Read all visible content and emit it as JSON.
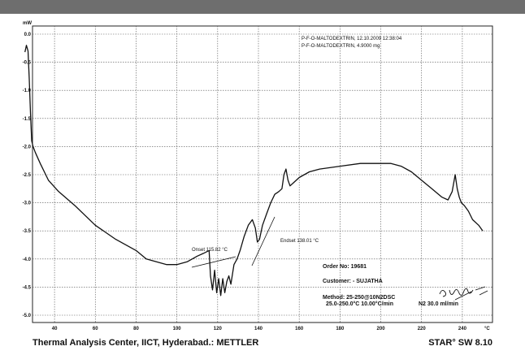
{
  "chart_data": {
    "type": "line",
    "title": "",
    "xlabel": "",
    "ylabel": "",
    "y_unit": "mW",
    "x_unit": "°C",
    "xlim": [
      30,
      250
    ],
    "ylim": [
      -5.0,
      0.0
    ],
    "x_ticks": [
      40,
      60,
      80,
      100,
      120,
      140,
      160,
      180,
      200,
      220,
      240
    ],
    "y_ticks": [
      0.0,
      -0.5,
      -1.0,
      -1.5,
      -2.0,
      -2.5,
      -3.0,
      -3.5,
      -4.0,
      -4.5,
      -5.0
    ],
    "grid": true,
    "series": [
      {
        "color": "#111111",
        "x": [
          25.5,
          26.2,
          27.0,
          27.6,
          28.2,
          28.8,
          29.5,
          30.5,
          33,
          37,
          42,
          50,
          60,
          70,
          80,
          85,
          90,
          95,
          100,
          105,
          110,
          113,
          115.8,
          116.5,
          117.5,
          118.5,
          119.5,
          120.5,
          121.5,
          122.5,
          123.5,
          124.5,
          125.5,
          126.5,
          128,
          129.5,
          131,
          133,
          135,
          137,
          138.5,
          139.5,
          140.5,
          142,
          144,
          146,
          148,
          150,
          151.5,
          152.5,
          153.5,
          154.5,
          155.5,
          157,
          160,
          165,
          170,
          180,
          190,
          200,
          205,
          210,
          215,
          220,
          225,
          230,
          233,
          235,
          236.5,
          237.5,
          238.5,
          239.5,
          241,
          243,
          245,
          248,
          250
        ],
        "y": [
          -0.32,
          -0.2,
          -0.3,
          -0.8,
          -1.4,
          -1.9,
          -2.0,
          -2.1,
          -2.3,
          -2.6,
          -2.8,
          -3.05,
          -3.4,
          -3.65,
          -3.85,
          -4.0,
          -4.05,
          -4.1,
          -4.1,
          -4.05,
          -3.95,
          -3.9,
          -3.85,
          -4.3,
          -4.55,
          -4.2,
          -4.6,
          -4.35,
          -4.65,
          -4.35,
          -4.6,
          -4.4,
          -4.3,
          -4.45,
          -4.1,
          -4.0,
          -3.85,
          -3.6,
          -3.4,
          -3.3,
          -3.45,
          -3.7,
          -3.65,
          -3.4,
          -3.2,
          -3.0,
          -2.85,
          -2.8,
          -2.75,
          -2.5,
          -2.4,
          -2.6,
          -2.7,
          -2.65,
          -2.55,
          -2.45,
          -2.4,
          -2.35,
          -2.3,
          -2.3,
          -2.3,
          -2.35,
          -2.45,
          -2.6,
          -2.75,
          -2.9,
          -2.95,
          -2.8,
          -2.5,
          -2.75,
          -2.9,
          -3.0,
          -3.05,
          -3.15,
          -3.3,
          -3.4,
          -3.5
        ]
      }
    ],
    "annotations": [
      {
        "text": "P-F-O-MALTODEXTRIN, 12.10.2009 12:38:04"
      },
      {
        "text": "P-F-O-MALTODEXTRIN, 4.9000 mg"
      },
      {
        "text": "Onset   115.82 °C",
        "x": 115.82
      },
      {
        "text": "Endset   138.01 °C",
        "x": 138.01
      },
      {
        "text": "Order No: 19681"
      },
      {
        "text": "Customer: - SUJATHA"
      },
      {
        "text": "Method: 25-250@10N2DSC"
      },
      {
        "text": "25.0-250.0°C 10.00°C/min"
      },
      {
        "text": "N2 30.0 ml/min"
      }
    ]
  },
  "footer": {
    "left": "Thermal Analysis Center, IICT, Hyderabad.: METTLER",
    "right": "STAR° SW 8.10"
  }
}
